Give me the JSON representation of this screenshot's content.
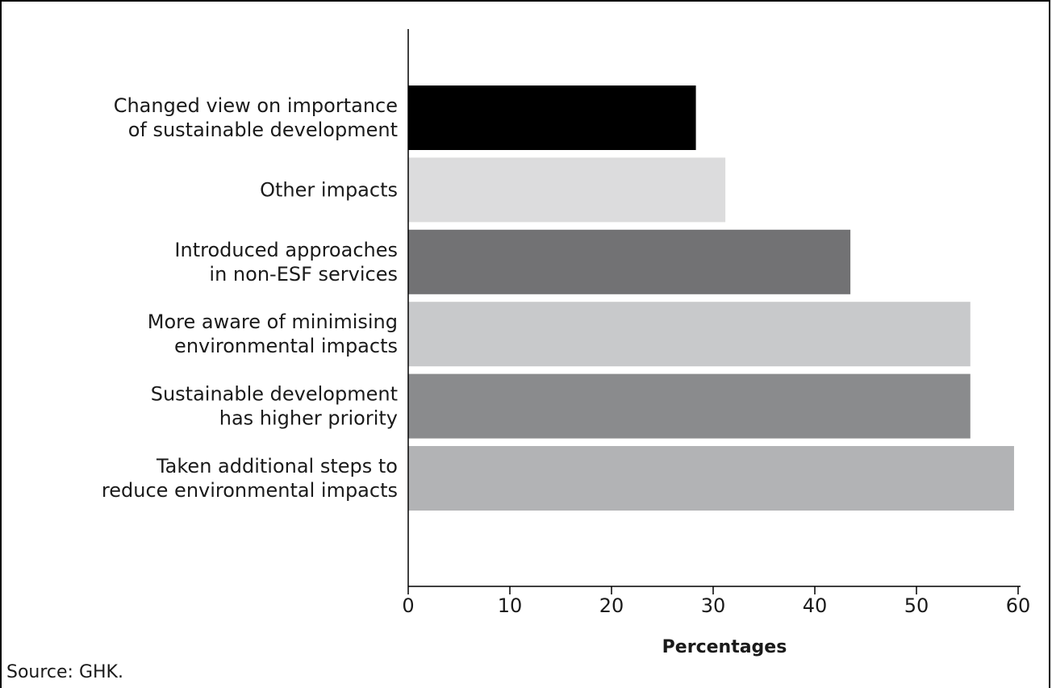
{
  "chart_data": {
    "type": "bar",
    "orientation": "horizontal",
    "categories": [
      [
        "Changed view on importance",
        "of sustainable development"
      ],
      [
        "Other impacts"
      ],
      [
        "Introduced approaches",
        "in non-ESF services"
      ],
      [
        "More aware of minimising",
        "environmental impacts"
      ],
      [
        "Sustainable development",
        "has higher priority"
      ],
      [
        "Taken additional steps to",
        "reduce environmental impacts"
      ]
    ],
    "values": [
      28.3,
      31.2,
      43.5,
      55.3,
      55.3,
      59.6
    ],
    "bar_colors": [
      "#000000",
      "#dcdcdd",
      "#727274",
      "#c8c9cb",
      "#8a8b8d",
      "#b2b3b5"
    ],
    "xlabel": "Percentages",
    "xlim": [
      0,
      60
    ],
    "xticks": [
      0,
      10,
      20,
      30,
      40,
      50,
      60
    ],
    "grid": false,
    "legend": "none"
  },
  "source_note": "Source: GHK."
}
